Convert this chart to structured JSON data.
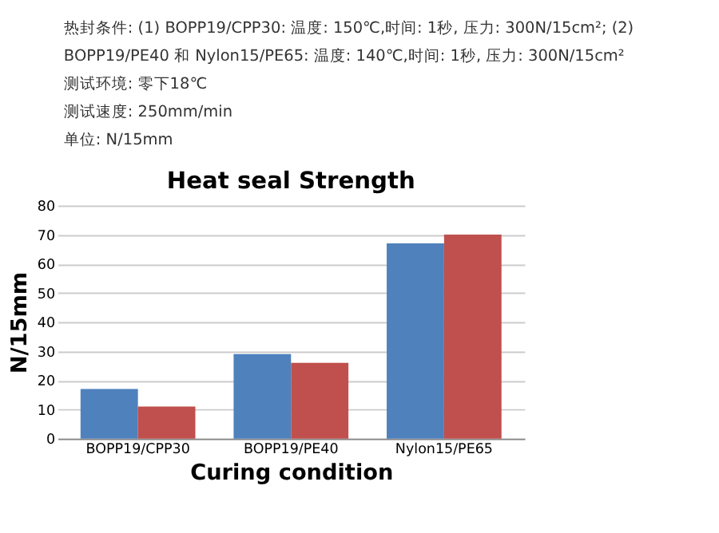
{
  "chart_data": {
    "type": "bar",
    "title": "Heat seal Strength",
    "xlabel": "Curing condition",
    "ylabel": "N/15mm",
    "annotations": [
      "热封条件: (1) BOPP19/CPP30: 温度: 150℃,时间: 1秒, 压力: 300N/15cm²; (2)",
      "BOPP19/PE40 和 Nylon15/PE65: 温度: 140℃,时间: 1秒, 压力: 300N/15cm²",
      "测试环境: 零下18℃",
      "测试速度: 250mm/min",
      "单位: N/15mm"
    ],
    "categories": [
      "BOPP19/CPP30",
      "BOPP19/PE40",
      "Nylon15/PE65"
    ],
    "series": [
      {
        "color": "#4f81bd",
        "values": [
          17,
          29,
          67
        ]
      },
      {
        "color": "#c0504d",
        "values": [
          11,
          26,
          70
        ]
      }
    ],
    "ylim": [
      0,
      80
    ],
    "yticks": [
      0,
      10,
      20,
      30,
      40,
      50,
      60,
      70,
      80
    ],
    "grid": "y",
    "legend": false
  }
}
